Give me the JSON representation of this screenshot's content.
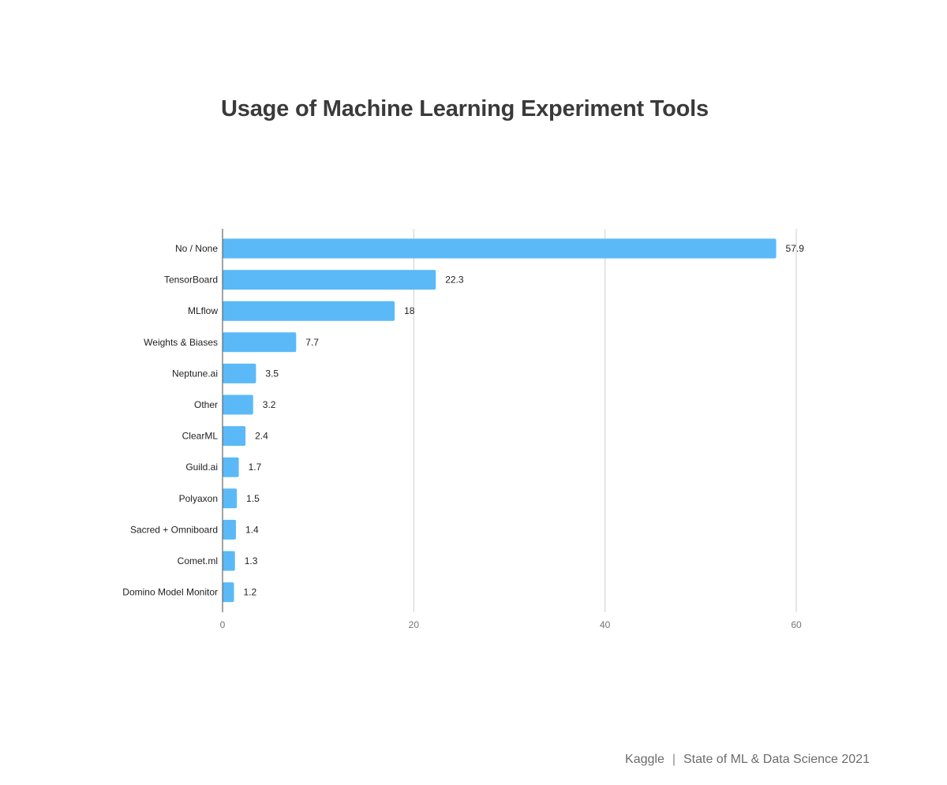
{
  "chart_data": {
    "type": "bar",
    "orientation": "horizontal",
    "title": "Usage of Machine Learning Experiment Tools",
    "xlabel": "",
    "ylabel": "",
    "categories": [
      "No / None",
      "TensorBoard",
      "MLflow",
      "Weights & Biases",
      "Neptune.ai",
      "Other",
      "ClearML",
      "Guild.ai",
      "Polyaxon",
      "Sacred + Omniboard",
      "Comet.ml",
      "Domino Model Monitor"
    ],
    "values": [
      57.9,
      22.3,
      18,
      7.7,
      3.5,
      3.2,
      2.4,
      1.7,
      1.5,
      1.4,
      1.3,
      1.2
    ],
    "value_labels": [
      "57.9",
      "22.3",
      "18",
      "7.7",
      "3.5",
      "3.2",
      "2.4",
      "1.7",
      "1.5",
      "1.4",
      "1.3",
      "1.2"
    ],
    "xlim": [
      0,
      60
    ],
    "x_ticks": [
      0,
      20,
      40,
      60
    ],
    "x_tick_labels": [
      "0",
      "20",
      "40",
      "60"
    ],
    "grid": "vertical",
    "legend": "none",
    "bar_color": "#5bb9f7"
  },
  "footer": {
    "brand": "Kaggle",
    "separator": "|",
    "report": "State of ML & Data Science 2021"
  }
}
